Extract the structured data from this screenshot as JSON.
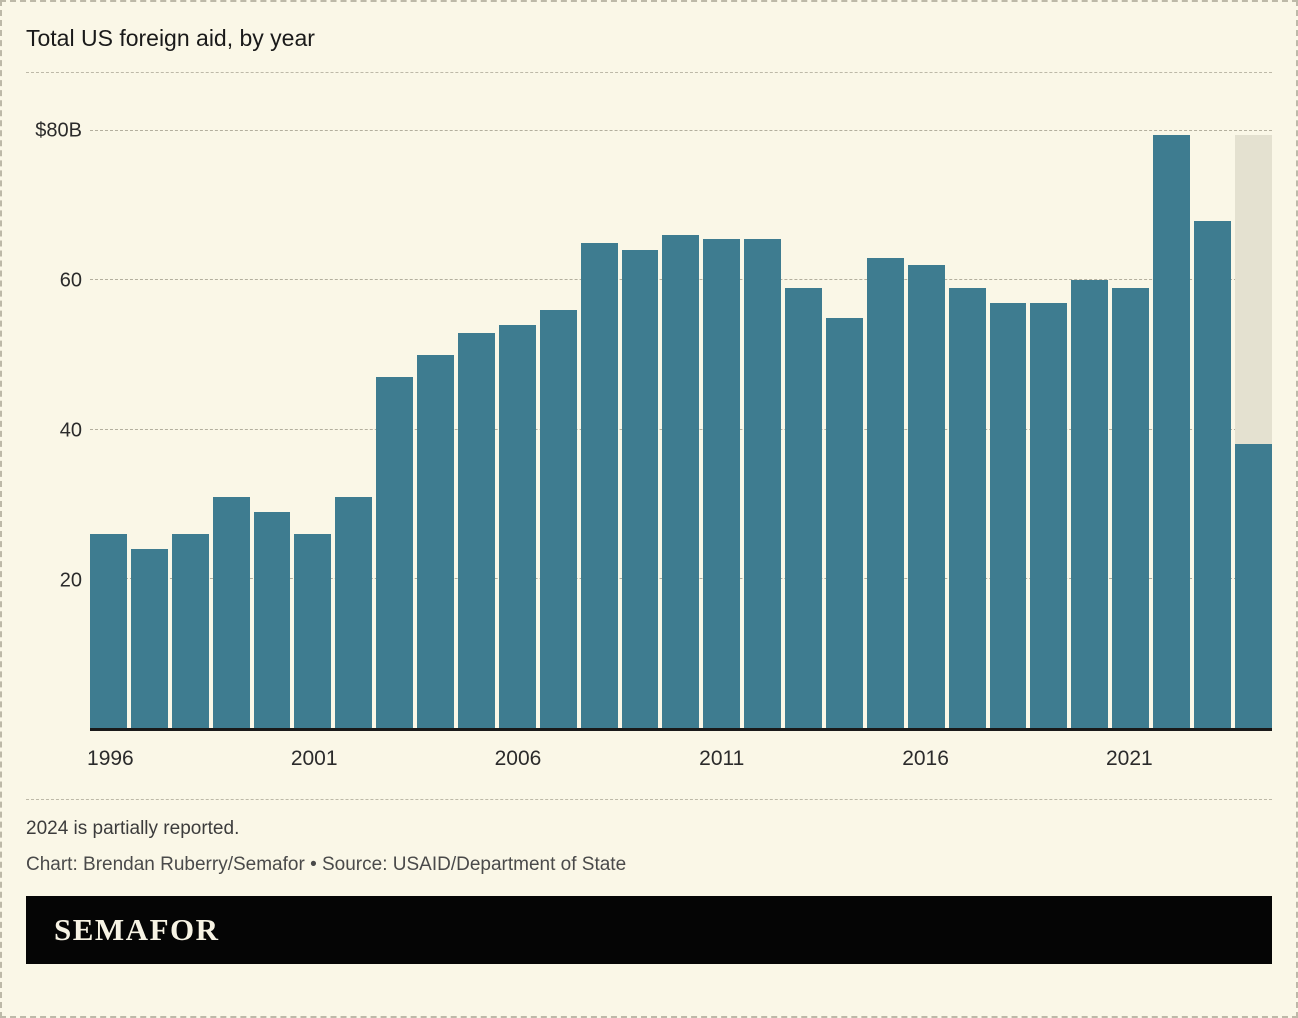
{
  "title": "Total US foreign aid, by year",
  "notes": {
    "note": "2024 is partially reported.",
    "credit": "Chart: Brendan Ruberry/Semafor • Source: USAID/Department of State"
  },
  "footer": {
    "brand": "SEMAFOR"
  },
  "colors": {
    "background": "#faf7e7",
    "bar": "#3e7c90",
    "ghost_bar": "#e4e1d0",
    "grid": "#b3af9e",
    "axis": "#1a1a1a",
    "text": "#1a1a1a",
    "muted_text": "#3c3c3c",
    "credit_text": "#4a4a4a",
    "footer_bg": "#050505",
    "footer_text": "#f7f3e4",
    "border": "#bdb9a8"
  },
  "chart_data": {
    "type": "bar",
    "title": "Total US foreign aid, by year",
    "unit": "USD billions",
    "xlabel": "",
    "ylabel": "",
    "ylim": [
      0,
      80
    ],
    "grid": "dashed horizontal gridlines",
    "legend": "none",
    "x": [
      1996,
      1997,
      1998,
      1999,
      2000,
      2001,
      2002,
      2003,
      2004,
      2005,
      2006,
      2007,
      2008,
      2009,
      2010,
      2011,
      2012,
      2013,
      2014,
      2015,
      2016,
      2017,
      2018,
      2019,
      2020,
      2021,
      2022,
      2023,
      2024
    ],
    "values": [
      26,
      24,
      26,
      31,
      29,
      26,
      31,
      47,
      50,
      53,
      54,
      56,
      65,
      64,
      66,
      65.5,
      65.5,
      59,
      55,
      63,
      62,
      59,
      57,
      57,
      60,
      59,
      79.5,
      68,
      38
    ],
    "ghost": {
      "year": 2024,
      "value": 79.5,
      "meaning": "partially reported year shown against full-height ghost bar"
    },
    "y_ticks": [
      {
        "value": 80,
        "label": "$80B"
      },
      {
        "value": 60,
        "label": "60"
      },
      {
        "value": 40,
        "label": "40"
      },
      {
        "value": 20,
        "label": "20"
      }
    ],
    "x_tick_years": [
      1996,
      2001,
      2006,
      2011,
      2016,
      2021
    ]
  }
}
